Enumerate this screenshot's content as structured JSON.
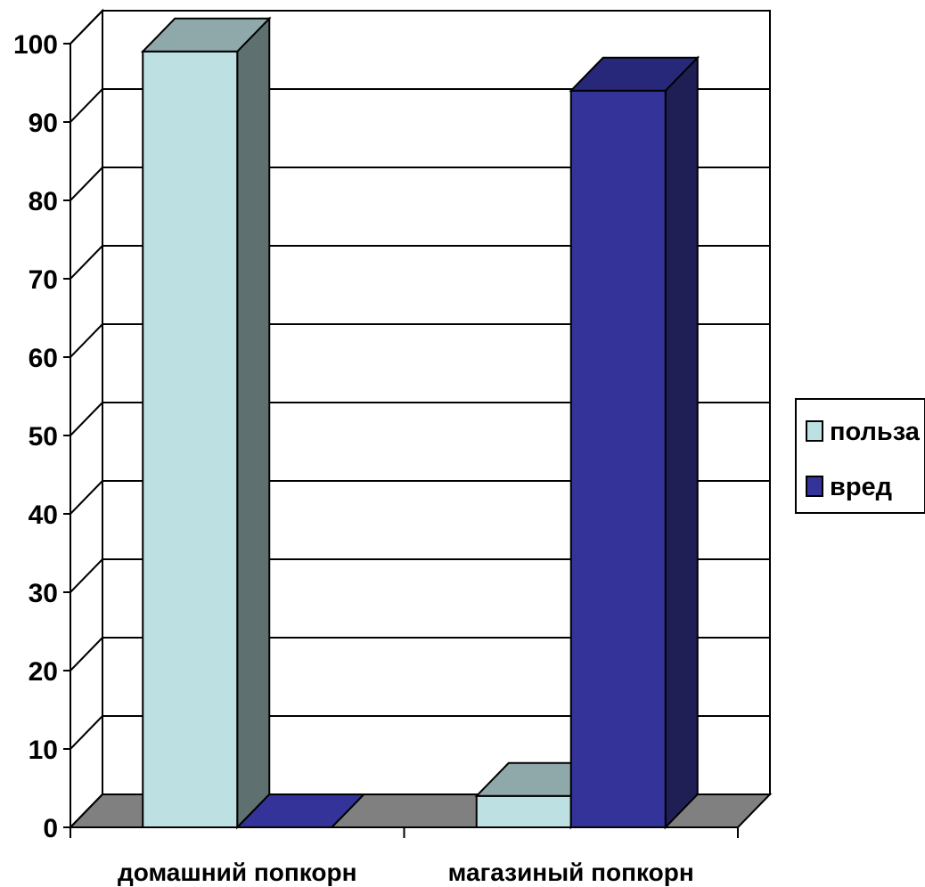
{
  "chart_data": {
    "type": "bar",
    "style": "3d-clustered-column",
    "categories": [
      "домашний попкорн",
      "магазиный попкорн"
    ],
    "series": [
      {
        "name": "польза",
        "values": [
          99,
          4
        ],
        "color": "#bde0e3",
        "side_color": "#5e7070",
        "top_color": "#8fa8aa"
      },
      {
        "name": "вред",
        "values": [
          0,
          94
        ],
        "color": "#333399",
        "side_color": "#1f1f55",
        "top_color": "#28287a"
      }
    ],
    "ylim": [
      0,
      100
    ],
    "y_ticks": [
      "0",
      "10",
      "20",
      "30",
      "40",
      "50",
      "60",
      "70",
      "80",
      "90",
      "100"
    ],
    "grid": true,
    "legend_position": "right",
    "floor_color": "#808080",
    "title": "",
    "xlabel": "",
    "ylabel": ""
  }
}
